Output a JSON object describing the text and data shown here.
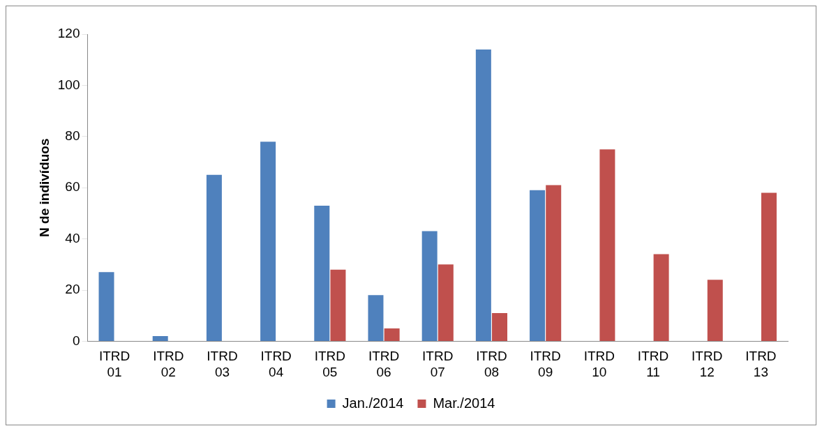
{
  "chart_data": {
    "type": "bar",
    "ylabel": "N de indivíduos",
    "categories": [
      "ITRD 01",
      "ITRD 02",
      "ITRD 03",
      "ITRD 04",
      "ITRD 05",
      "ITRD 06",
      "ITRD 07",
      "ITRD 08",
      "ITRD 09",
      "ITRD 10",
      "ITRD 11",
      "ITRD 12",
      "ITRD 13"
    ],
    "series": [
      {
        "name": "Jan./2014",
        "color": "#4f81bd",
        "values": [
          27,
          2,
          65,
          78,
          53,
          18,
          43,
          114,
          59,
          null,
          null,
          null,
          null
        ]
      },
      {
        "name": "Mar./2014",
        "color": "#c0504d",
        "values": [
          null,
          null,
          null,
          null,
          28,
          5,
          30,
          11,
          61,
          75,
          34,
          24,
          58
        ]
      }
    ],
    "ylim": [
      0,
      120
    ],
    "yticks": [
      0,
      20,
      40,
      60,
      80,
      100,
      120
    ],
    "grid": false,
    "legend": "bottom"
  }
}
